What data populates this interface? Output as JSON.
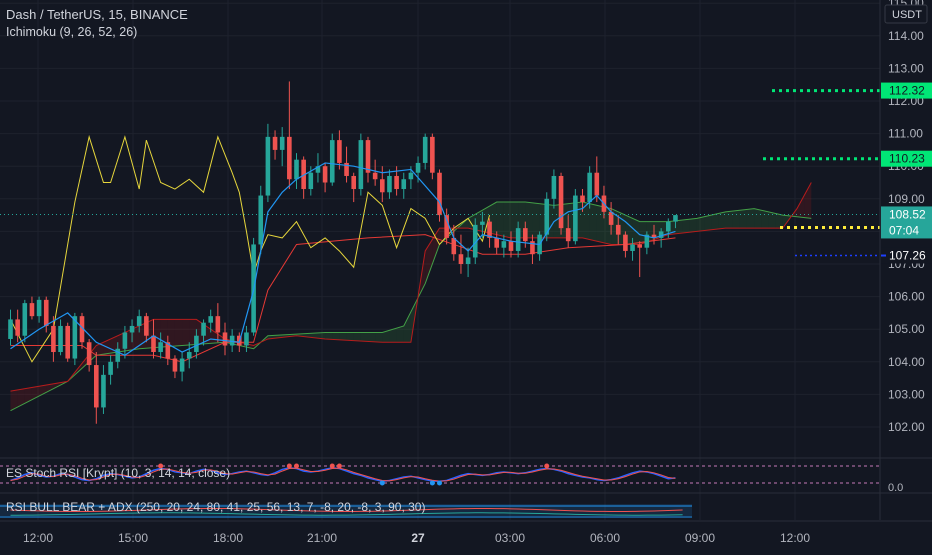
{
  "header": {
    "symbol": "Dash / TetherUS, 15, BINANCE",
    "indicator": "Ichimoku (9, 26, 52, 26)"
  },
  "currency": "USDT",
  "chart_data": {
    "type": "candlestick",
    "ylim": [
      101.5,
      115.2
    ],
    "y_ticks": [
      "115.00",
      "114.00",
      "113.00",
      "112.00",
      "111.00",
      "110.00",
      "109.00",
      "108.00",
      "107.00",
      "106.00",
      "105.00",
      "104.00",
      "103.00",
      "102.00"
    ],
    "x_ticks": [
      "12:00",
      "15:00",
      "18:00",
      "21:00",
      "27",
      "03:00",
      "06:00",
      "09:00",
      "12:00"
    ],
    "candles": [
      [
        104.7,
        105.6,
        104.5,
        105.3
      ],
      [
        105.3,
        105.6,
        104.6,
        104.8
      ],
      [
        104.8,
        105.9,
        104.6,
        105.8
      ],
      [
        105.8,
        106.0,
        105.3,
        105.4
      ],
      [
        105.4,
        106.0,
        105.2,
        105.9
      ],
      [
        105.9,
        106.0,
        104.9,
        105.1
      ],
      [
        105.1,
        105.4,
        104.0,
        104.3
      ],
      [
        104.3,
        105.3,
        104.2,
        105.1
      ],
      [
        105.1,
        105.2,
        104.0,
        104.1
      ],
      [
        104.1,
        105.5,
        103.9,
        105.4
      ],
      [
        105.4,
        105.5,
        104.4,
        104.6
      ],
      [
        104.6,
        104.7,
        103.7,
        103.9
      ],
      [
        103.9,
        104.3,
        102.1,
        102.6
      ],
      [
        102.6,
        103.9,
        102.4,
        103.6
      ],
      [
        103.6,
        104.2,
        103.3,
        104.0
      ],
      [
        104.0,
        104.6,
        103.8,
        104.4
      ],
      [
        104.4,
        105.1,
        104.1,
        104.9
      ],
      [
        104.9,
        105.3,
        104.6,
        105.1
      ],
      [
        105.1,
        105.6,
        104.9,
        105.4
      ],
      [
        105.4,
        105.5,
        104.6,
        104.8
      ],
      [
        104.8,
        105.3,
        104.1,
        104.3
      ],
      [
        104.3,
        104.9,
        104.1,
        104.6
      ],
      [
        104.6,
        104.8,
        103.9,
        104.1
      ],
      [
        104.1,
        104.2,
        103.5,
        103.7
      ],
      [
        103.7,
        104.3,
        103.4,
        104.1
      ],
      [
        104.1,
        104.6,
        103.8,
        104.3
      ],
      [
        104.3,
        105.0,
        104.1,
        104.8
      ],
      [
        104.8,
        105.3,
        104.5,
        105.2
      ],
      [
        105.2,
        105.6,
        104.9,
        105.4
      ],
      [
        105.4,
        105.8,
        104.6,
        104.9
      ],
      [
        104.9,
        105.2,
        104.2,
        104.5
      ],
      [
        104.5,
        105.0,
        104.3,
        104.8
      ],
      [
        104.8,
        104.9,
        104.3,
        104.5
      ],
      [
        104.5,
        105.1,
        104.3,
        104.9
      ],
      [
        104.9,
        107.8,
        104.8,
        107.6
      ],
      [
        107.6,
        109.4,
        107.3,
        109.1
      ],
      [
        109.1,
        111.3,
        108.9,
        110.9
      ],
      [
        110.9,
        111.1,
        110.2,
        110.5
      ],
      [
        110.5,
        111.2,
        110.0,
        110.9
      ],
      [
        110.9,
        112.6,
        109.3,
        109.6
      ],
      [
        109.6,
        110.4,
        109.3,
        110.2
      ],
      [
        110.2,
        110.3,
        109.0,
        109.3
      ],
      [
        109.3,
        110.0,
        109.1,
        109.8
      ],
      [
        109.8,
        110.4,
        109.5,
        110.0
      ],
      [
        110.0,
        110.1,
        109.2,
        109.5
      ],
      [
        109.5,
        111.0,
        109.4,
        110.8
      ],
      [
        110.8,
        111.1,
        109.9,
        110.1
      ],
      [
        110.1,
        110.6,
        109.5,
        109.7
      ],
      [
        109.7,
        109.8,
        108.9,
        109.3
      ],
      [
        109.3,
        111.0,
        109.1,
        110.8
      ],
      [
        110.8,
        110.9,
        109.5,
        109.8
      ],
      [
        109.8,
        110.2,
        109.4,
        109.6
      ],
      [
        109.6,
        110.0,
        108.9,
        109.2
      ],
      [
        109.2,
        109.9,
        109.0,
        109.7
      ],
      [
        109.7,
        110.0,
        109.1,
        109.3
      ],
      [
        109.3,
        109.8,
        109.0,
        109.6
      ],
      [
        109.6,
        110.0,
        109.3,
        109.8
      ],
      [
        109.8,
        110.3,
        109.5,
        110.1
      ],
      [
        110.1,
        111.0,
        109.9,
        110.9
      ],
      [
        110.9,
        111.0,
        109.6,
        109.8
      ],
      [
        109.8,
        109.9,
        108.3,
        108.5
      ],
      [
        108.5,
        108.7,
        107.6,
        107.8
      ],
      [
        107.8,
        108.2,
        107.1,
        107.3
      ],
      [
        107.3,
        107.9,
        106.7,
        107.0
      ],
      [
        107.0,
        107.5,
        106.6,
        107.2
      ],
      [
        107.2,
        108.4,
        107.0,
        108.2
      ],
      [
        108.2,
        108.6,
        107.8,
        108.3
      ],
      [
        108.3,
        108.4,
        107.5,
        107.8
      ],
      [
        107.8,
        108.0,
        107.3,
        107.5
      ],
      [
        107.5,
        107.9,
        107.2,
        107.7
      ],
      [
        107.7,
        108.0,
        107.2,
        107.4
      ],
      [
        107.4,
        108.3,
        107.2,
        108.1
      ],
      [
        108.1,
        108.3,
        107.5,
        107.7
      ],
      [
        107.7,
        107.9,
        107.0,
        107.3
      ],
      [
        107.3,
        108.0,
        107.1,
        107.9
      ],
      [
        107.9,
        109.2,
        107.7,
        109.0
      ],
      [
        109.0,
        109.9,
        108.7,
        109.7
      ],
      [
        109.7,
        109.8,
        107.9,
        108.1
      ],
      [
        108.1,
        108.5,
        107.5,
        107.7
      ],
      [
        107.7,
        109.3,
        107.6,
        109.1
      ],
      [
        109.1,
        109.3,
        108.6,
        108.9
      ],
      [
        108.9,
        110.0,
        108.7,
        109.8
      ],
      [
        109.8,
        110.3,
        108.9,
        109.1
      ],
      [
        109.1,
        109.4,
        108.4,
        108.6
      ],
      [
        108.6,
        108.9,
        107.9,
        108.2
      ],
      [
        108.2,
        108.5,
        107.6,
        107.9
      ],
      [
        107.9,
        108.0,
        107.2,
        107.4
      ],
      [
        107.4,
        107.8,
        107.1,
        107.6
      ],
      [
        107.6,
        107.7,
        106.6,
        107.5
      ],
      [
        107.5,
        108.0,
        107.3,
        107.9
      ],
      [
        107.9,
        108.2,
        107.6,
        107.8
      ],
      [
        107.8,
        108.1,
        107.5,
        108.0
      ],
      [
        108.0,
        108.4,
        107.8,
        108.3
      ],
      [
        108.3,
        108.5,
        108.1,
        108.5
      ]
    ],
    "tenkan": [
      [
        0,
        104.4
      ],
      [
        4,
        105.0
      ],
      [
        8,
        105.5
      ],
      [
        12,
        104.6
      ],
      [
        16,
        104.2
      ],
      [
        20,
        104.8
      ],
      [
        24,
        104.3
      ],
      [
        28,
        104.7
      ],
      [
        32,
        104.6
      ],
      [
        34,
        106.2
      ],
      [
        36,
        108.6
      ],
      [
        38,
        109.2
      ],
      [
        40,
        109.6
      ],
      [
        44,
        110.1
      ],
      [
        48,
        110.0
      ],
      [
        52,
        109.8
      ],
      [
        56,
        109.9
      ],
      [
        60,
        108.9
      ],
      [
        62,
        107.8
      ],
      [
        64,
        107.4
      ],
      [
        66,
        107.9
      ],
      [
        70,
        107.7
      ],
      [
        74,
        107.6
      ],
      [
        76,
        108.3
      ],
      [
        78,
        108.6
      ],
      [
        80,
        108.7
      ],
      [
        82,
        109.1
      ],
      [
        84,
        108.6
      ],
      [
        86,
        108.3
      ],
      [
        88,
        107.9
      ],
      [
        90,
        107.8
      ],
      [
        93,
        108.0
      ]
    ],
    "kijun": [
      [
        0,
        104.5
      ],
      [
        10,
        104.5
      ],
      [
        12,
        104.2
      ],
      [
        20,
        104.2
      ],
      [
        24,
        104.0
      ],
      [
        30,
        104.6
      ],
      [
        34,
        104.6
      ],
      [
        36,
        106.2
      ],
      [
        40,
        107.6
      ],
      [
        50,
        107.8
      ],
      [
        58,
        107.9
      ],
      [
        62,
        107.6
      ],
      [
        66,
        107.3
      ],
      [
        72,
        107.3
      ],
      [
        78,
        107.5
      ],
      [
        86,
        107.6
      ],
      [
        93,
        107.8
      ]
    ],
    "chikou": [
      [
        0,
        105.3
      ],
      [
        3,
        104.0
      ],
      [
        6,
        105.0
      ],
      [
        9,
        108.9
      ],
      [
        11,
        110.9
      ],
      [
        12,
        110.2
      ],
      [
        13,
        109.5
      ],
      [
        14,
        109.5
      ],
      [
        16,
        110.9
      ],
      [
        18,
        109.3
      ],
      [
        19,
        110.8
      ],
      [
        21,
        109.5
      ],
      [
        23,
        109.3
      ],
      [
        25,
        109.6
      ],
      [
        27,
        109.2
      ],
      [
        29,
        110.9
      ],
      [
        31,
        109.8
      ],
      [
        32,
        109.2
      ],
      [
        33,
        108.0
      ],
      [
        34,
        106.7
      ],
      [
        35,
        107.4
      ],
      [
        36,
        107.9
      ],
      [
        38,
        107.8
      ],
      [
        40,
        108.3
      ],
      [
        42,
        107.5
      ],
      [
        44,
        107.8
      ],
      [
        46,
        107.4
      ],
      [
        48,
        106.9
      ],
      [
        50,
        109.2
      ],
      [
        52,
        108.8
      ],
      [
        54,
        107.5
      ],
      [
        56,
        108.7
      ],
      [
        58,
        108.4
      ],
      [
        60,
        107.6
      ],
      [
        62,
        108.1
      ],
      [
        64,
        108.4
      ],
      [
        66,
        107.7
      ],
      [
        67,
        108.5
      ]
    ],
    "span_a": [
      [
        0,
        102.5
      ],
      [
        8,
        103.4
      ],
      [
        12,
        104.2
      ],
      [
        18,
        104.4
      ],
      [
        24,
        104.5
      ],
      [
        30,
        104.6
      ],
      [
        34,
        104.4
      ],
      [
        36,
        104.8
      ],
      [
        44,
        104.9
      ],
      [
        52,
        104.9
      ],
      [
        55,
        105.1
      ],
      [
        58,
        106.4
      ],
      [
        60,
        107.6
      ],
      [
        64,
        108.4
      ],
      [
        68,
        108.9
      ],
      [
        72,
        108.9
      ],
      [
        76,
        108.8
      ],
      [
        80,
        108.9
      ],
      [
        84,
        108.7
      ],
      [
        88,
        108.3
      ],
      [
        92,
        108.3
      ],
      [
        96,
        108.4
      ],
      [
        100,
        108.6
      ],
      [
        104,
        108.7
      ],
      [
        108,
        108.5
      ],
      [
        112,
        108.4
      ]
    ],
    "span_b": [
      [
        0,
        103.1
      ],
      [
        8,
        103.4
      ],
      [
        12,
        104.5
      ],
      [
        20,
        105.3
      ],
      [
        26,
        105.3
      ],
      [
        30,
        104.7
      ],
      [
        34,
        104.5
      ],
      [
        36,
        104.7
      ],
      [
        40,
        104.8
      ],
      [
        44,
        104.7
      ],
      [
        52,
        104.6
      ],
      [
        56,
        104.6
      ],
      [
        58,
        107.4
      ],
      [
        60,
        108.1
      ],
      [
        64,
        108.1
      ],
      [
        66,
        108.0
      ],
      [
        70,
        107.8
      ],
      [
        80,
        107.8
      ],
      [
        84,
        107.6
      ],
      [
        88,
        107.6
      ],
      [
        92,
        107.9
      ],
      [
        96,
        108.0
      ],
      [
        100,
        108.1
      ],
      [
        104,
        108.1
      ],
      [
        108,
        108.1
      ],
      [
        110,
        108.7
      ],
      [
        112,
        109.5
      ]
    ],
    "levels": [
      {
        "value": 112.32,
        "label": "112.32",
        "color": "#00e676"
      },
      {
        "value": 110.23,
        "label": "110.23",
        "color": "#00e676"
      },
      {
        "value": 108.12,
        "label": "108.12",
        "color": "#ffeb3b"
      },
      {
        "value": 107.26,
        "label": "107.26",
        "color": "#1e3fff"
      }
    ],
    "last_price": {
      "value": 108.52,
      "label": "108.52",
      "countdown": "07:04",
      "color": "#26a69a"
    },
    "colors": {
      "up": "#26a69a",
      "down": "#ef5350",
      "tenkan": "#2196f3",
      "kijun": "#e53935",
      "chikou": "#e6d63c",
      "span_a": "#43a047",
      "span_b": "#b71c1c"
    }
  },
  "stoch_rsi": {
    "label": "ES Stoch RSI [Krypt] (10, 3, 14, 14, close)",
    "tick": "0.0",
    "values": [
      0.15,
      0.3,
      0.5,
      0.6,
      0.45,
      0.35,
      0.4,
      0.55,
      0.5,
      0.35,
      0.2,
      0.15,
      0.25,
      0.45,
      0.55,
      0.5,
      0.4,
      0.3,
      0.35,
      0.55,
      0.75,
      0.85,
      0.8,
      0.65,
      0.6,
      0.55,
      0.7,
      0.8,
      0.75,
      0.6,
      0.5,
      0.55,
      0.65,
      0.7,
      0.6,
      0.5,
      0.45,
      0.6,
      0.8,
      0.9,
      0.85,
      0.7,
      0.65,
      0.7,
      0.8,
      0.9,
      0.85,
      0.7,
      0.55,
      0.45,
      0.3,
      0.2,
      0.1,
      0.15,
      0.25,
      0.35,
      0.4,
      0.3,
      0.2,
      0.12,
      0.1,
      0.15,
      0.3,
      0.45,
      0.55,
      0.5,
      0.45,
      0.5,
      0.6,
      0.65,
      0.6,
      0.55,
      0.6,
      0.7,
      0.8,
      0.85,
      0.8,
      0.7,
      0.55,
      0.45,
      0.35,
      0.3,
      0.2,
      0.15,
      0.2,
      0.3,
      0.45,
      0.6,
      0.7,
      0.65,
      0.55,
      0.4,
      0.25,
      0.3
    ]
  },
  "rsi_adx": {
    "label": "RSI BULL BEAR + ADX (250, 20, 24, 80, 41, 25, 56, 13, 7, -8, 20, -8, 3, 90, 30)"
  }
}
